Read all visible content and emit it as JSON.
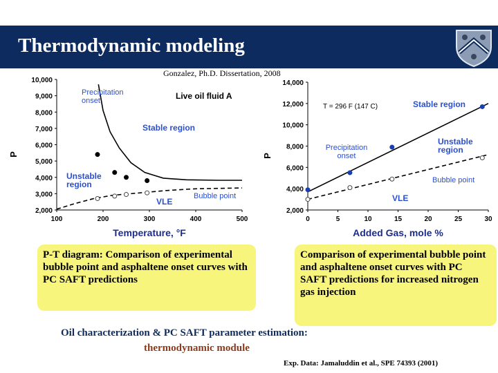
{
  "slide": {
    "title": "Thermodynamic modeling",
    "source": "Gonzalez, Ph.D. Dissertation, 2008",
    "caption_left": "P-T diagram: Comparison of experimental bubble point and asphaltene onset curves with PC SAFT predictions",
    "caption_right": "Comparison of experimental bubble point and asphaltene onset curves with PC SAFT predictions for increased nitrogen gas injection",
    "bottom_line1": "Oil characterization & PC SAFT parameter estimation:",
    "bottom_line2": "thermodynamic module",
    "exp_data": "Exp. Data: Jamaluddin et al., SPE 74393 (2001)",
    "colors": {
      "title_bar": "#0d2b5e",
      "caption_bg": "#f8f57c",
      "label_blue": "#2a4fd0",
      "bottom_line2": "#8b3a1a"
    }
  },
  "chart_data": [
    {
      "type": "line",
      "xlabel": "Temperature, °F",
      "ylabel": "P",
      "xlim": [
        100,
        500
      ],
      "ylim": [
        2000,
        10000
      ],
      "x_ticks": [
        "100",
        "200",
        "300",
        "400",
        "500"
      ],
      "y_ticks": [
        "2,000",
        "3,000",
        "4,000",
        "5,000",
        "6,000",
        "7,000",
        "8,000",
        "9,000",
        "10,000"
      ],
      "annotations": [
        "Precipitation onset",
        "Live oil fluid A",
        "Stable region",
        "Unstable region",
        "VLE",
        "Bubble point"
      ],
      "series": [
        {
          "style": "solid",
          "x": [
            190,
            200,
            215,
            235,
            260,
            290,
            330,
            380,
            450,
            500
          ],
          "y": [
            9700,
            8100,
            6800,
            5800,
            4900,
            4300,
            3950,
            3850,
            3820,
            3820
          ]
        },
        {
          "style": "dashed",
          "x": [
            100,
            140,
            180,
            220,
            260,
            300,
            340,
            400,
            500
          ],
          "y": [
            2050,
            2400,
            2700,
            2900,
            3000,
            3100,
            3200,
            3300,
            3350
          ]
        },
        {
          "style": "markers-filled",
          "x": [
            188,
            225,
            250,
            295
          ],
          "y": [
            5400,
            4300,
            4000,
            3800
          ]
        },
        {
          "style": "markers-open",
          "x": [
            188,
            225,
            250,
            295
          ],
          "y": [
            2700,
            2850,
            2950,
            3050
          ]
        }
      ]
    },
    {
      "type": "line",
      "xlabel": "Added Gas, mole %",
      "ylabel": "P",
      "xlim": [
        0,
        30
      ],
      "ylim": [
        2000,
        14000
      ],
      "x_ticks": [
        "0",
        "5",
        "10",
        "15",
        "20",
        "25",
        "30"
      ],
      "y_ticks": [
        "2,000",
        "4,000",
        "6,000",
        "8,000",
        "10,000",
        "12,000",
        "14,000"
      ],
      "annotations": [
        "T = 296 F (147 C)",
        "Stable region",
        "Precipitation onset",
        "Unstable region",
        "Bubble point",
        "VLE"
      ],
      "series": [
        {
          "style": "solid",
          "x": [
            0,
            30
          ],
          "y": [
            3700,
            12000
          ]
        },
        {
          "style": "dashed",
          "x": [
            0,
            30
          ],
          "y": [
            3000,
            7200
          ]
        },
        {
          "style": "markers-filled",
          "x": [
            0,
            7,
            14,
            29
          ],
          "y": [
            3900,
            5500,
            7900,
            11700
          ]
        },
        {
          "style": "markers-open",
          "x": [
            0,
            7,
            14,
            29
          ],
          "y": [
            3000,
            4100,
            4900,
            6900
          ]
        }
      ]
    }
  ]
}
